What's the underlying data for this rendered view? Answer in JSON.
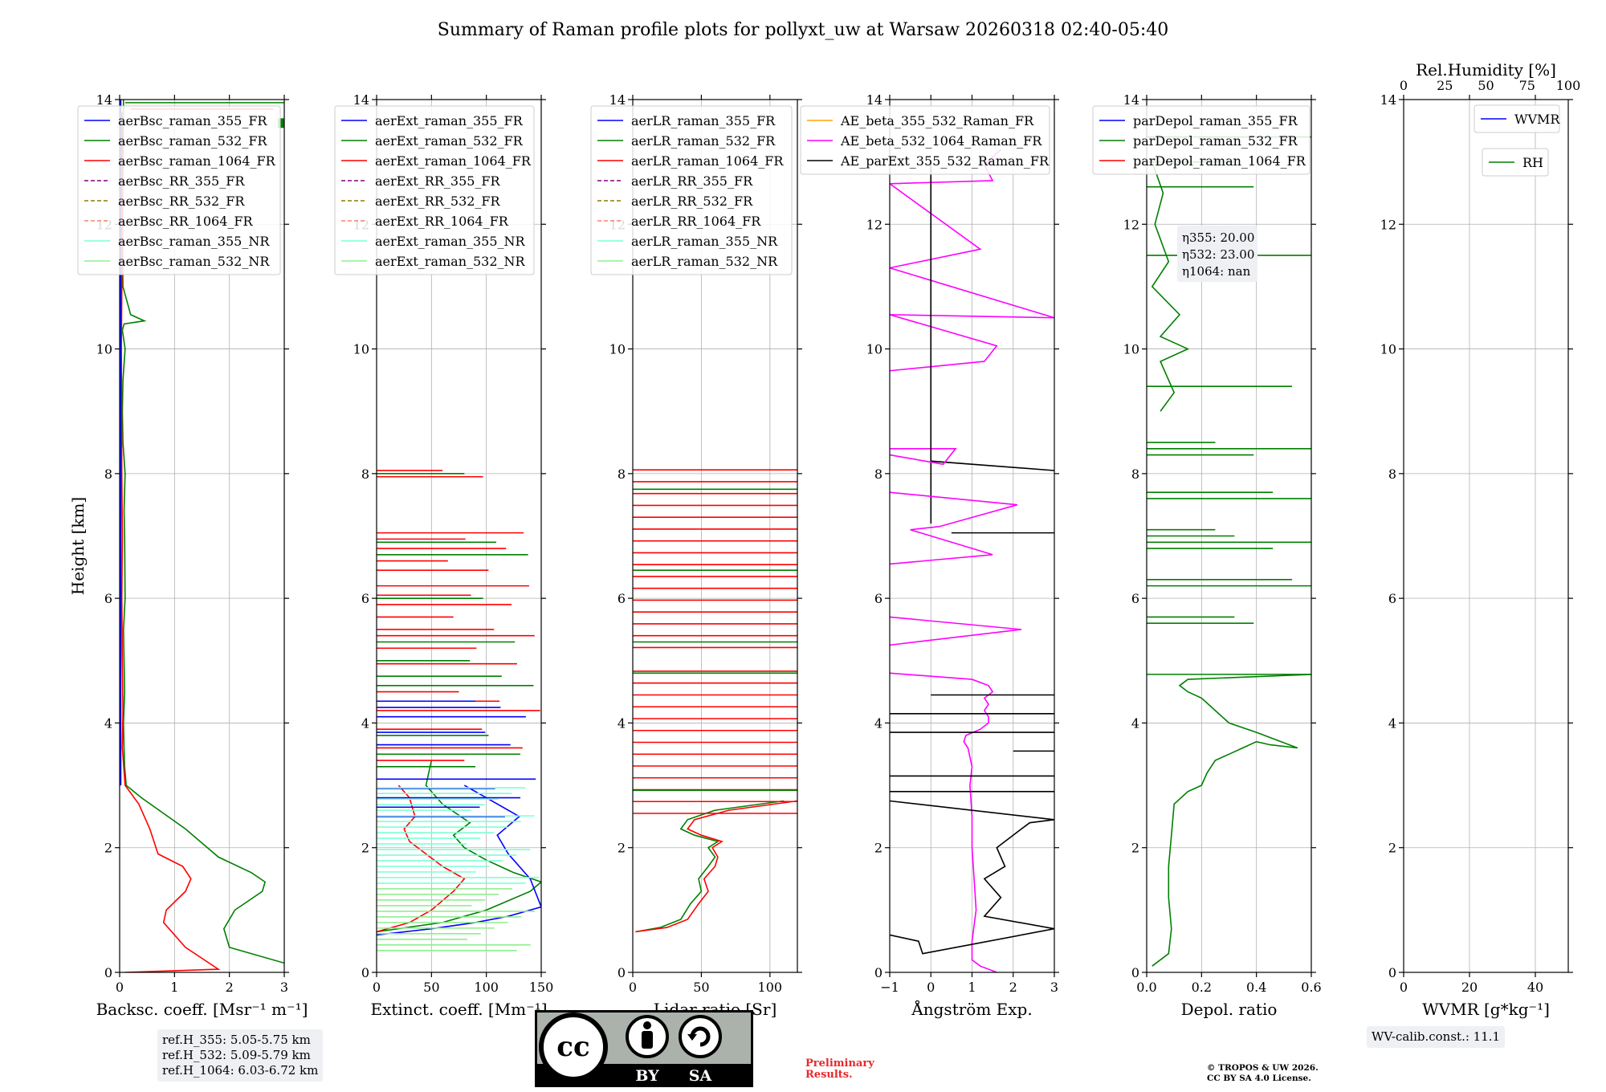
{
  "title": "Summary of Raman profile plots for pollyxt_uw at Warsaw 20260318 02:40-05:40",
  "colors": {
    "blue": "#0000ff",
    "green": "#008000",
    "red": "#ff0000",
    "purple": "#800080",
    "olive": "#808000",
    "salmon": "#fa8072",
    "cyan": "#7fffd4",
    "lightgreen": "#90ee90",
    "orange": "#ffa500",
    "magenta": "#ff00ff",
    "black": "#000000"
  },
  "chart_data": [
    {
      "type": "line",
      "panel": "backscatter",
      "xlabel": "Backsc. coeff. [Msr⁻¹ m⁻¹]",
      "ylabel": "Height [km]",
      "xlim": [
        0,
        3
      ],
      "ylim": [
        0,
        14
      ],
      "xticks": [
        0,
        1,
        2,
        3
      ],
      "yticks": [
        0,
        2,
        4,
        6,
        8,
        10,
        12,
        14
      ],
      "legend": [
        "aerBsc_raman_355_FR",
        "aerBsc_raman_532_FR",
        "aerBsc_raman_1064_FR",
        "aerBsc_RR_355_FR",
        "aerBsc_RR_532_FR",
        "aerBsc_RR_1064_FR",
        "aerBsc_raman_355_NR",
        "aerBsc_raman_532_NR"
      ],
      "legend_styles": [
        [
          "blue",
          "solid"
        ],
        [
          "green",
          "solid"
        ],
        [
          "red",
          "solid"
        ],
        [
          "purple",
          "dashed"
        ],
        [
          "olive",
          "dashed"
        ],
        [
          "salmon",
          "dashed"
        ],
        [
          "cyan",
          "solid"
        ],
        [
          "lightgreen",
          "solid"
        ]
      ],
      "series": [
        {
          "name": "aerBsc_raman_532_FR",
          "color": "green",
          "x": [
            3.0,
            2.0,
            1.9,
            2.1,
            2.6,
            2.65,
            2.4,
            1.8,
            1.2,
            0.4,
            0.12,
            0.09,
            0.08,
            0.07,
            0.09,
            0.08,
            0.07,
            0.1,
            0.09,
            0.08,
            0.1,
            0.06,
            0.05,
            0.06,
            0.1,
            0.05,
            0.08,
            0.45,
            0.2,
            0.06,
            0.05,
            0.06,
            0.07
          ],
          "y": [
            0.15,
            0.4,
            0.7,
            1.0,
            1.3,
            1.45,
            1.6,
            1.85,
            2.3,
            2.8,
            3.0,
            3.3,
            3.6,
            4.0,
            4.5,
            5.0,
            5.5,
            6.0,
            7.0,
            7.4,
            8.0,
            8.5,
            9.0,
            9.5,
            10.0,
            10.3,
            10.4,
            10.45,
            10.55,
            11.0,
            12.0,
            13.0,
            14.0
          ]
        },
        {
          "name": "aerBsc_raman_1064_FR",
          "color": "red",
          "x": [
            0.1,
            1.8,
            1.2,
            0.8,
            0.85,
            1.2,
            1.3,
            1.15,
            0.7,
            0.55,
            0.35,
            0.1,
            0.05,
            0.06,
            0.05,
            0.04,
            0.05,
            0.04,
            0.03,
            0.05,
            0.04
          ],
          "y": [
            0.0,
            0.05,
            0.4,
            0.8,
            1.0,
            1.3,
            1.5,
            1.7,
            1.9,
            2.3,
            2.7,
            3.0,
            3.6,
            4.2,
            5.0,
            6.0,
            7.0,
            8.0,
            10.0,
            12.0,
            13.8
          ]
        },
        {
          "name": "aerBsc_raman_355_FR",
          "color": "blue",
          "x": [
            0.02,
            0.02,
            0.02,
            0.02
          ],
          "y": [
            3.0,
            6.0,
            10.0,
            14.0
          ]
        }
      ]
    },
    {
      "type": "line",
      "panel": "extinction",
      "xlabel": "Extinct. coeff. [Mm⁻¹]",
      "xlim": [
        0,
        150
      ],
      "ylim": [
        0,
        14
      ],
      "xticks": [
        0,
        50,
        100,
        150
      ],
      "yticks": [
        0,
        2,
        4,
        6,
        8,
        10,
        12,
        14
      ],
      "legend": [
        "aerExt_raman_355_FR",
        "aerExt_raman_532_FR",
        "aerExt_raman_1064_FR",
        "aerExt_RR_355_FR",
        "aerExt_RR_532_FR",
        "aerExt_RR_1064_FR",
        "aerExt_raman_355_NR",
        "aerExt_raman_532_NR"
      ],
      "legend_styles": [
        [
          "blue",
          "solid"
        ],
        [
          "green",
          "solid"
        ],
        [
          "red",
          "solid"
        ],
        [
          "purple",
          "dashed"
        ],
        [
          "olive",
          "dashed"
        ],
        [
          "salmon",
          "dashed"
        ],
        [
          "cyan",
          "solid"
        ],
        [
          "lightgreen",
          "solid"
        ]
      ],
      "series": [
        {
          "name": "aerExt_raman_532_FR",
          "color": "green",
          "x": [
            0,
            60,
            100,
            140,
            150,
            125,
            100,
            80,
            70,
            85,
            60,
            45,
            50
          ],
          "y": [
            0.65,
            0.8,
            1.0,
            1.3,
            1.45,
            1.6,
            1.8,
            2.0,
            2.2,
            2.4,
            2.7,
            3.0,
            3.4
          ]
        },
        {
          "name": "aerExt_raman_1064_FR",
          "color": "red",
          "x": [
            0,
            30,
            50,
            70,
            80,
            60,
            45,
            30,
            25,
            35,
            30,
            20
          ],
          "y": [
            0.65,
            0.8,
            1.0,
            1.3,
            1.5,
            1.7,
            1.9,
            2.1,
            2.3,
            2.5,
            2.8,
            3.0
          ]
        },
        {
          "name": "aerExt_raman_355_FR",
          "color": "blue",
          "x": [
            0,
            50,
            90,
            120,
            150,
            140,
            120,
            110,
            130,
            100,
            80
          ],
          "y": [
            0.6,
            0.7,
            0.8,
            0.9,
            1.05,
            1.5,
            1.9,
            2.2,
            2.5,
            2.8,
            3.0
          ]
        }
      ]
    },
    {
      "type": "line",
      "panel": "lidar_ratio",
      "xlabel": "Lidar ratio [Sr]",
      "xlim": [
        0,
        120
      ],
      "ylim": [
        0,
        14
      ],
      "xticks": [
        0,
        50,
        100
      ],
      "yticks": [
        0,
        2,
        4,
        6,
        8,
        10,
        12,
        14
      ],
      "legend": [
        "aerLR_raman_355_FR",
        "aerLR_raman_532_FR",
        "aerLR_raman_1064_FR",
        "aerLR_RR_355_FR",
        "aerLR_RR_532_FR",
        "aerLR_RR_1064_FR",
        "aerLR_raman_355_NR",
        "aerLR_raman_532_NR"
      ],
      "legend_styles": [
        [
          "blue",
          "solid"
        ],
        [
          "green",
          "solid"
        ],
        [
          "red",
          "solid"
        ],
        [
          "purple",
          "dashed"
        ],
        [
          "olive",
          "dashed"
        ],
        [
          "salmon",
          "dashed"
        ],
        [
          "cyan",
          "solid"
        ],
        [
          "lightgreen",
          "solid"
        ]
      ],
      "series": [
        {
          "name": "aerLR_raman_532_FR",
          "color": "green",
          "x": [
            2,
            20,
            35,
            42,
            50,
            48,
            55,
            60,
            55,
            62,
            45,
            35,
            40,
            60,
            110
          ],
          "y": [
            0.65,
            0.72,
            0.85,
            1.1,
            1.3,
            1.5,
            1.7,
            1.85,
            2.0,
            2.1,
            2.2,
            2.3,
            2.45,
            2.6,
            2.75
          ]
        },
        {
          "name": "aerLR_raman_1064_FR",
          "color": "red",
          "x": [
            2,
            25,
            40,
            48,
            55,
            52,
            60,
            62,
            58,
            65,
            50,
            40,
            45,
            70,
            120
          ],
          "y": [
            0.65,
            0.72,
            0.85,
            1.1,
            1.3,
            1.5,
            1.7,
            1.85,
            2.0,
            2.1,
            2.2,
            2.3,
            2.45,
            2.6,
            2.75
          ]
        }
      ]
    },
    {
      "type": "line",
      "panel": "angstrom",
      "xlabel": "Ångström Exp.",
      "xlim": [
        -1,
        3
      ],
      "ylim": [
        0,
        14
      ],
      "xticks": [
        -1,
        0,
        1,
        2,
        3
      ],
      "yticks": [
        0,
        2,
        4,
        6,
        8,
        10,
        12,
        14
      ],
      "legend": [
        "AE_beta_355_532_Raman_FR",
        "AE_beta_532_1064_Raman_FR",
        "AE_parExt_355_532_Raman_FR"
      ],
      "legend_styles": [
        [
          "orange",
          "solid"
        ],
        [
          "magenta",
          "solid"
        ],
        [
          "black",
          "solid"
        ]
      ],
      "series": [
        {
          "name": "AE_beta_532_1064_Raman_FR",
          "color": "magenta",
          "x": [
            1.6,
            1.2,
            1.0,
            1.0,
            1.1,
            1.05,
            1.0,
            1.0,
            0.95,
            1.0,
            0.9,
            0.8,
            0.85,
            1.2,
            1.4,
            1.4,
            1.3,
            1.4,
            1.3,
            1.5,
            1.4,
            1.0,
            -1.0
          ],
          "y": [
            0.0,
            0.1,
            0.2,
            0.5,
            1.0,
            1.5,
            2.0,
            2.5,
            3.0,
            3.3,
            3.6,
            3.7,
            3.8,
            3.9,
            4.0,
            4.1,
            4.2,
            4.3,
            4.4,
            4.5,
            4.6,
            4.7,
            4.8
          ]
        },
        {
          "name": "AE_parExt_355_532_Raman_FR",
          "color": "black",
          "x": [
            -1.0,
            -0.3,
            -0.2,
            3.0,
            1.3,
            1.7,
            1.3,
            1.8,
            1.6,
            2.2,
            2.4,
            3.0,
            -1.0
          ],
          "y": [
            0.6,
            0.5,
            0.3,
            0.7,
            0.9,
            1.2,
            1.5,
            1.7,
            2.0,
            2.3,
            2.4,
            2.45,
            2.75
          ]
        },
        {
          "name": "AE_parExt_355_532_Raman_FR_upper",
          "color": "black",
          "x": [
            0.0,
            0.0,
            0.0,
            3.0
          ],
          "y": [
            7.2,
            7.8,
            8.2,
            8.05
          ]
        }
      ]
    },
    {
      "type": "line",
      "panel": "depol",
      "xlabel": "Depol. ratio",
      "xlim": [
        0,
        0.6
      ],
      "ylim": [
        0,
        14
      ],
      "xticks": [
        0.0,
        0.2,
        0.4,
        0.6
      ],
      "xtick_labels": [
        "0.0",
        "0.2",
        "0.4",
        "0.6"
      ],
      "yticks": [
        0,
        2,
        4,
        6,
        8,
        10,
        12,
        14
      ],
      "legend": [
        "parDepol_raman_355_FR",
        "parDepol_raman_532_FR",
        "parDepol_raman_1064_FR"
      ],
      "legend_styles": [
        [
          "blue",
          "solid"
        ],
        [
          "green",
          "solid"
        ],
        [
          "red",
          "solid"
        ]
      ],
      "series": [
        {
          "name": "parDepol_raman_532_FR",
          "color": "green",
          "x": [
            0.02,
            0.08,
            0.09,
            0.08,
            0.08,
            0.09,
            0.1,
            0.15,
            0.2,
            0.22,
            0.25,
            0.3,
            0.35,
            0.4,
            0.45,
            0.55,
            0.4,
            0.3,
            0.25,
            0.2,
            0.15,
            0.12,
            0.15,
            0.6
          ],
          "y": [
            0.1,
            0.3,
            0.7,
            1.2,
            1.7,
            2.2,
            2.7,
            2.9,
            3.0,
            3.2,
            3.4,
            3.5,
            3.6,
            3.7,
            3.65,
            3.6,
            3.85,
            4.0,
            4.2,
            4.4,
            4.5,
            4.6,
            4.7,
            4.78
          ]
        }
      ],
      "annotation": [
        "η355: 20.00",
        "η532: 23.00",
        "η1064: nan"
      ]
    },
    {
      "type": "line",
      "panel": "wvmr",
      "xlabel": "WVMR [g*kg⁻¹]",
      "xlim": [
        0,
        50
      ],
      "ylim": [
        0,
        14
      ],
      "xticks": [
        0,
        20,
        40
      ],
      "yticks": [
        0,
        2,
        4,
        6,
        8,
        10,
        12,
        14
      ],
      "top_axis": {
        "label": "Rel.Humidity [%]",
        "xlim": [
          0,
          100
        ],
        "xticks": [
          0,
          25,
          50,
          75,
          100
        ]
      },
      "legend": [
        "WVMR",
        "RH"
      ],
      "legend_styles": [
        [
          "blue",
          "solid"
        ],
        [
          "green",
          "solid"
        ]
      ],
      "series": []
    }
  ],
  "ref_heights": [
    "ref.H_355: 5.05-5.75 km",
    "ref.H_532: 5.09-5.79 km",
    "ref.H_1064: 6.03-6.72 km"
  ],
  "wv_calib": "WV-calib.const.: 11.1",
  "preliminary": [
    "Preliminary",
    "Results."
  ],
  "copyright": [
    "© TROPOS & UW 2026.",
    "CC BY SA 4.0 License."
  ],
  "license_badge": {
    "cc": "cc",
    "by": "BY",
    "sa": "SA"
  }
}
